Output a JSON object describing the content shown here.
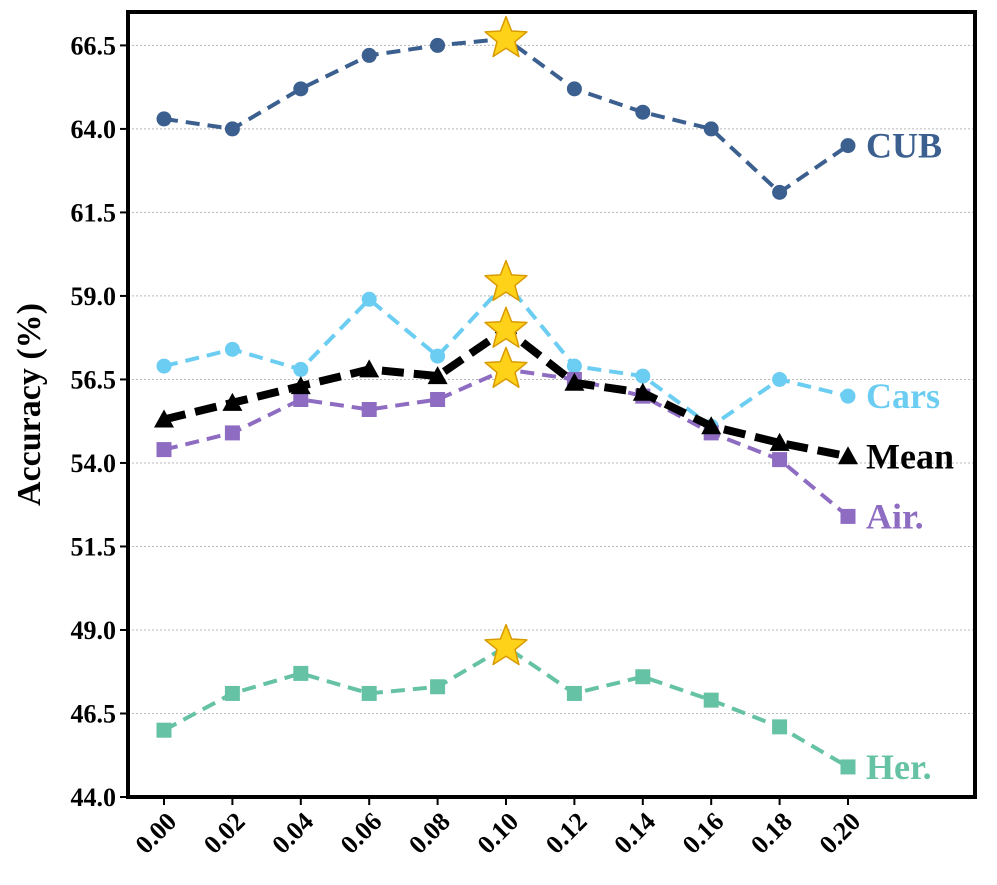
{
  "chart_data": {
    "type": "line",
    "title": "",
    "xlabel": "",
    "ylabel": "Accuracy (%)",
    "ylim": [
      44.0,
      67.5
    ],
    "yticks": [
      44.0,
      46.5,
      49.0,
      51.5,
      54.0,
      56.5,
      59.0,
      61.5,
      64.0,
      66.5
    ],
    "ytick_labels": [
      "44.0",
      "46.5",
      "49.0",
      "51.5",
      "54.0",
      "56.5",
      "59.0",
      "61.5",
      "64.0",
      "66.5"
    ],
    "grid": "horizontal-dotted",
    "x": [
      0.0,
      0.02,
      0.04,
      0.06,
      0.08,
      0.1,
      0.12,
      0.14,
      0.16,
      0.18,
      0.2
    ],
    "xtick_labels": [
      "0.00",
      "0.02",
      "0.04",
      "0.06",
      "0.08",
      "0.10",
      "0.12",
      "0.14",
      "0.16",
      "0.18",
      "0.20"
    ],
    "best_marker": "star",
    "best_x": 0.1,
    "series": [
      {
        "name": "CUB",
        "label": "CUB",
        "color": "#3b5f8e",
        "marker": "circle",
        "lineweight": "normal",
        "values": [
          64.3,
          64.0,
          65.2,
          66.2,
          66.5,
          66.7,
          65.2,
          64.5,
          64.0,
          62.1,
          63.5
        ]
      },
      {
        "name": "Cars",
        "label": "Cars",
        "color": "#6ccdf2",
        "marker": "circle",
        "lineweight": "normal",
        "values": [
          56.9,
          57.4,
          56.8,
          58.9,
          57.2,
          59.4,
          56.9,
          56.6,
          55.1,
          56.5,
          56.0
        ]
      },
      {
        "name": "Mean",
        "label": "Mean",
        "color": "#000000",
        "marker": "triangle",
        "lineweight": "bold",
        "values": [
          55.3,
          55.8,
          56.3,
          56.8,
          56.6,
          58.0,
          56.4,
          56.1,
          55.1,
          54.6,
          54.2
        ]
      },
      {
        "name": "Air.",
        "label": "Air.",
        "color": "#8e6cc1",
        "marker": "square",
        "lineweight": "normal",
        "values": [
          54.4,
          54.9,
          55.9,
          55.6,
          55.9,
          56.8,
          56.5,
          56.0,
          54.9,
          54.1,
          52.4
        ]
      },
      {
        "name": "Her.",
        "label": "Her.",
        "color": "#66c2a5",
        "marker": "square",
        "lineweight": "normal",
        "values": [
          46.0,
          47.1,
          47.7,
          47.1,
          47.3,
          48.5,
          47.1,
          47.6,
          46.9,
          46.1,
          44.9
        ]
      }
    ]
  }
}
